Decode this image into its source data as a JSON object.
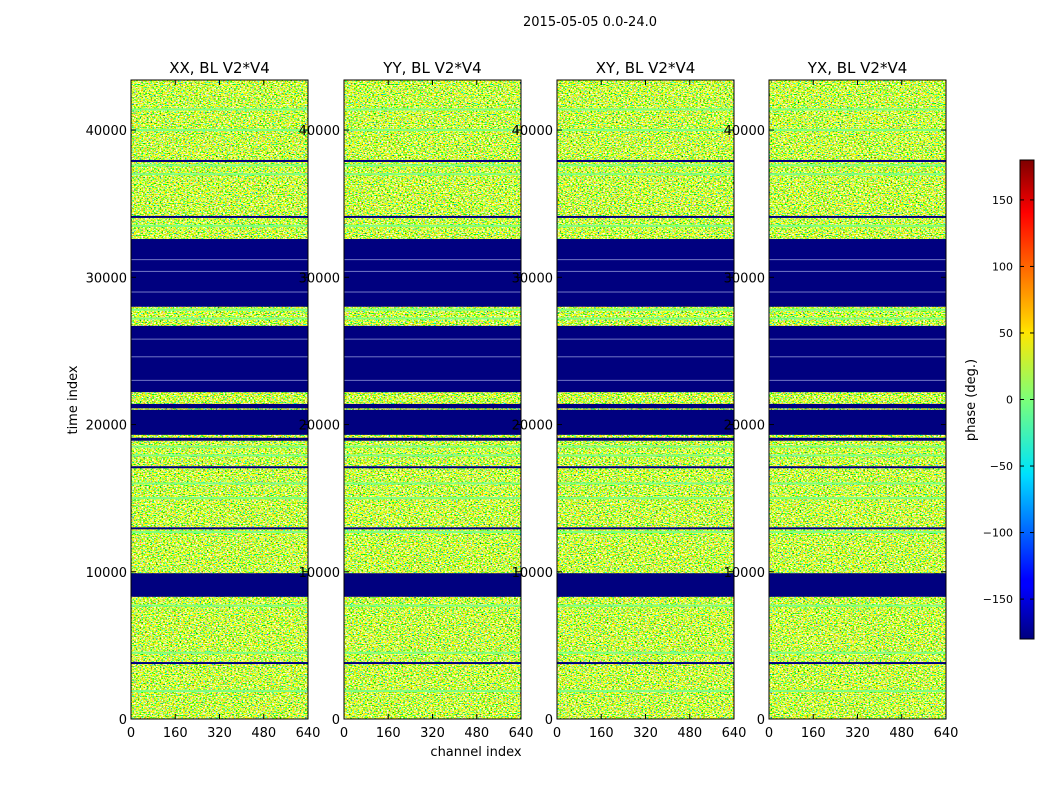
{
  "figure": {
    "title": "2015-05-05 0.0-24.0"
  },
  "chart_data": {
    "type": "heatmap",
    "colormap": "jet",
    "xlabel": "channel index",
    "ylabel": "time index",
    "xlim": [
      0,
      640
    ],
    "ylim": [
      0,
      43400
    ],
    "x_ticks": [
      "0",
      "160",
      "320",
      "480",
      "640"
    ],
    "y_ticks": [
      "0",
      "10000",
      "20000",
      "30000",
      "40000"
    ],
    "x_tick_values": [
      0,
      160,
      320,
      480,
      640
    ],
    "y_tick_values": [
      0,
      10000,
      20000,
      30000,
      40000
    ],
    "panels": [
      {
        "title": "XX, BL V2*V4"
      },
      {
        "title": "YY, BL V2*V4"
      },
      {
        "title": "XY, BL V2*V4"
      },
      {
        "title": "YX, BL V2*V4"
      }
    ],
    "flagged_time_ranges": [
      [
        8300,
        9900
      ],
      [
        18900,
        19100
      ],
      [
        19300,
        21000
      ],
      [
        21100,
        21400
      ],
      [
        22200,
        26700
      ],
      [
        28000,
        32600
      ]
    ],
    "horizontal_stripes": [
      {
        "t": 1900,
        "color": "#7fff7f"
      },
      {
        "t": 3800,
        "color": "#000080"
      },
      {
        "t": 4500,
        "color": "#7fff7f"
      },
      {
        "t": 7700,
        "color": "#7fff7f"
      },
      {
        "t": 12700,
        "color": "#7fff7f"
      },
      {
        "t": 12950,
        "color": "#000080"
      },
      {
        "t": 15000,
        "color": "#7fff7f"
      },
      {
        "t": 16000,
        "color": "#7fff7f"
      },
      {
        "t": 17100,
        "color": "#000080"
      },
      {
        "t": 17900,
        "color": "#7fff7f"
      },
      {
        "t": 18500,
        "color": "#7fff7f"
      },
      {
        "t": 27200,
        "color": "#7fff7f"
      },
      {
        "t": 27800,
        "color": "#7fff7f"
      },
      {
        "t": 33500,
        "color": "#7fff7f"
      },
      {
        "t": 34100,
        "color": "#000080"
      },
      {
        "t": 37000,
        "color": "#7fff7f"
      },
      {
        "t": 37600,
        "color": "#7fff7f"
      },
      {
        "t": 37900,
        "color": "#000080"
      },
      {
        "t": 40000,
        "color": "#7fff7f"
      },
      {
        "t": 41400,
        "color": "#7fff7f"
      }
    ],
    "masked_line_times": [
      23000,
      24600,
      25800,
      29000,
      30400,
      31200
    ],
    "colorbar": {
      "label": "phase (deg.)",
      "range": [
        -180,
        180
      ],
      "ticks": [
        "150",
        "100",
        "50",
        "0",
        "−50",
        "−100",
        "−150"
      ],
      "tick_values": [
        150,
        100,
        50,
        0,
        -50,
        -100,
        -150
      ]
    }
  }
}
